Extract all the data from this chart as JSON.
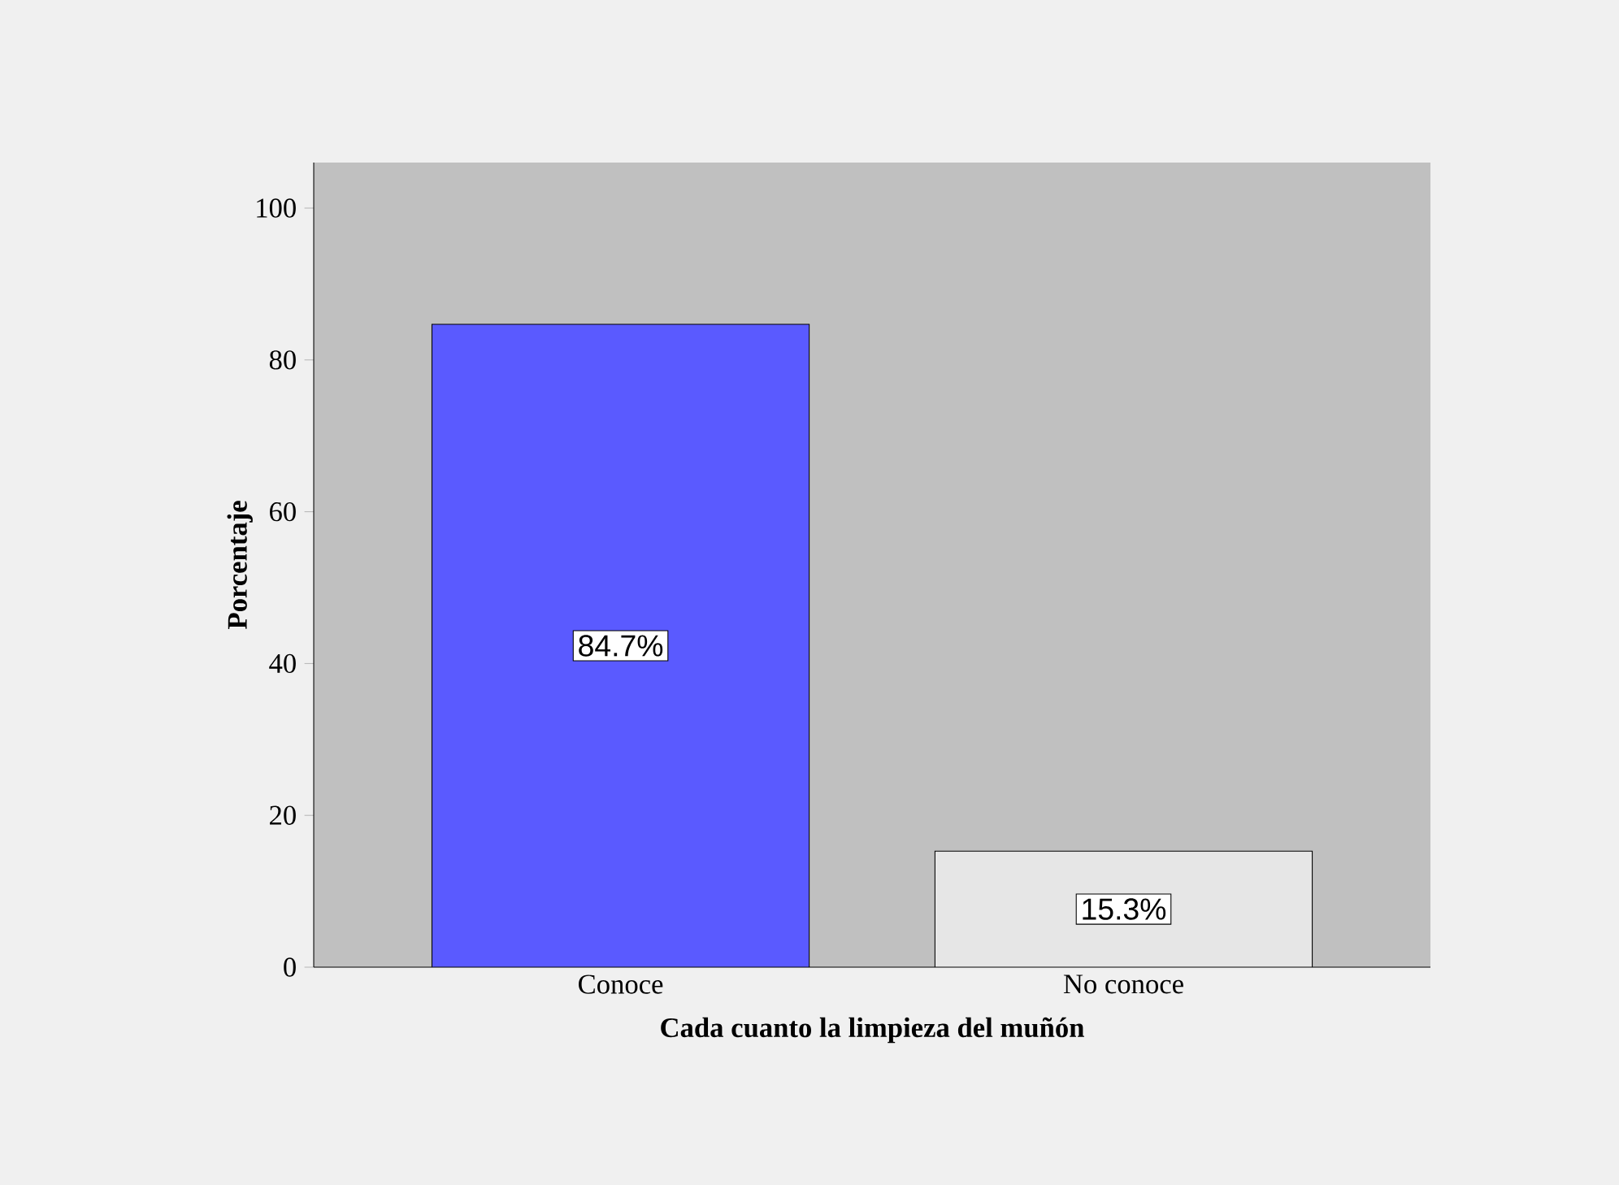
{
  "chart_data": {
    "type": "bar",
    "xlabel": "Cada cuanto la limpieza del muñón",
    "ylabel": "Porcentaje",
    "categories": [
      "Conoce",
      "No conoce"
    ],
    "values": [
      84.7,
      15.3
    ],
    "colors": [
      "#5a5aff",
      "#e6e6e6"
    ],
    "value_labels": [
      "84.7%",
      "15.3%"
    ],
    "ylim": [
      0,
      106
    ],
    "yticks": [
      0,
      20,
      40,
      60,
      80,
      100
    ],
    "grid": false
  }
}
